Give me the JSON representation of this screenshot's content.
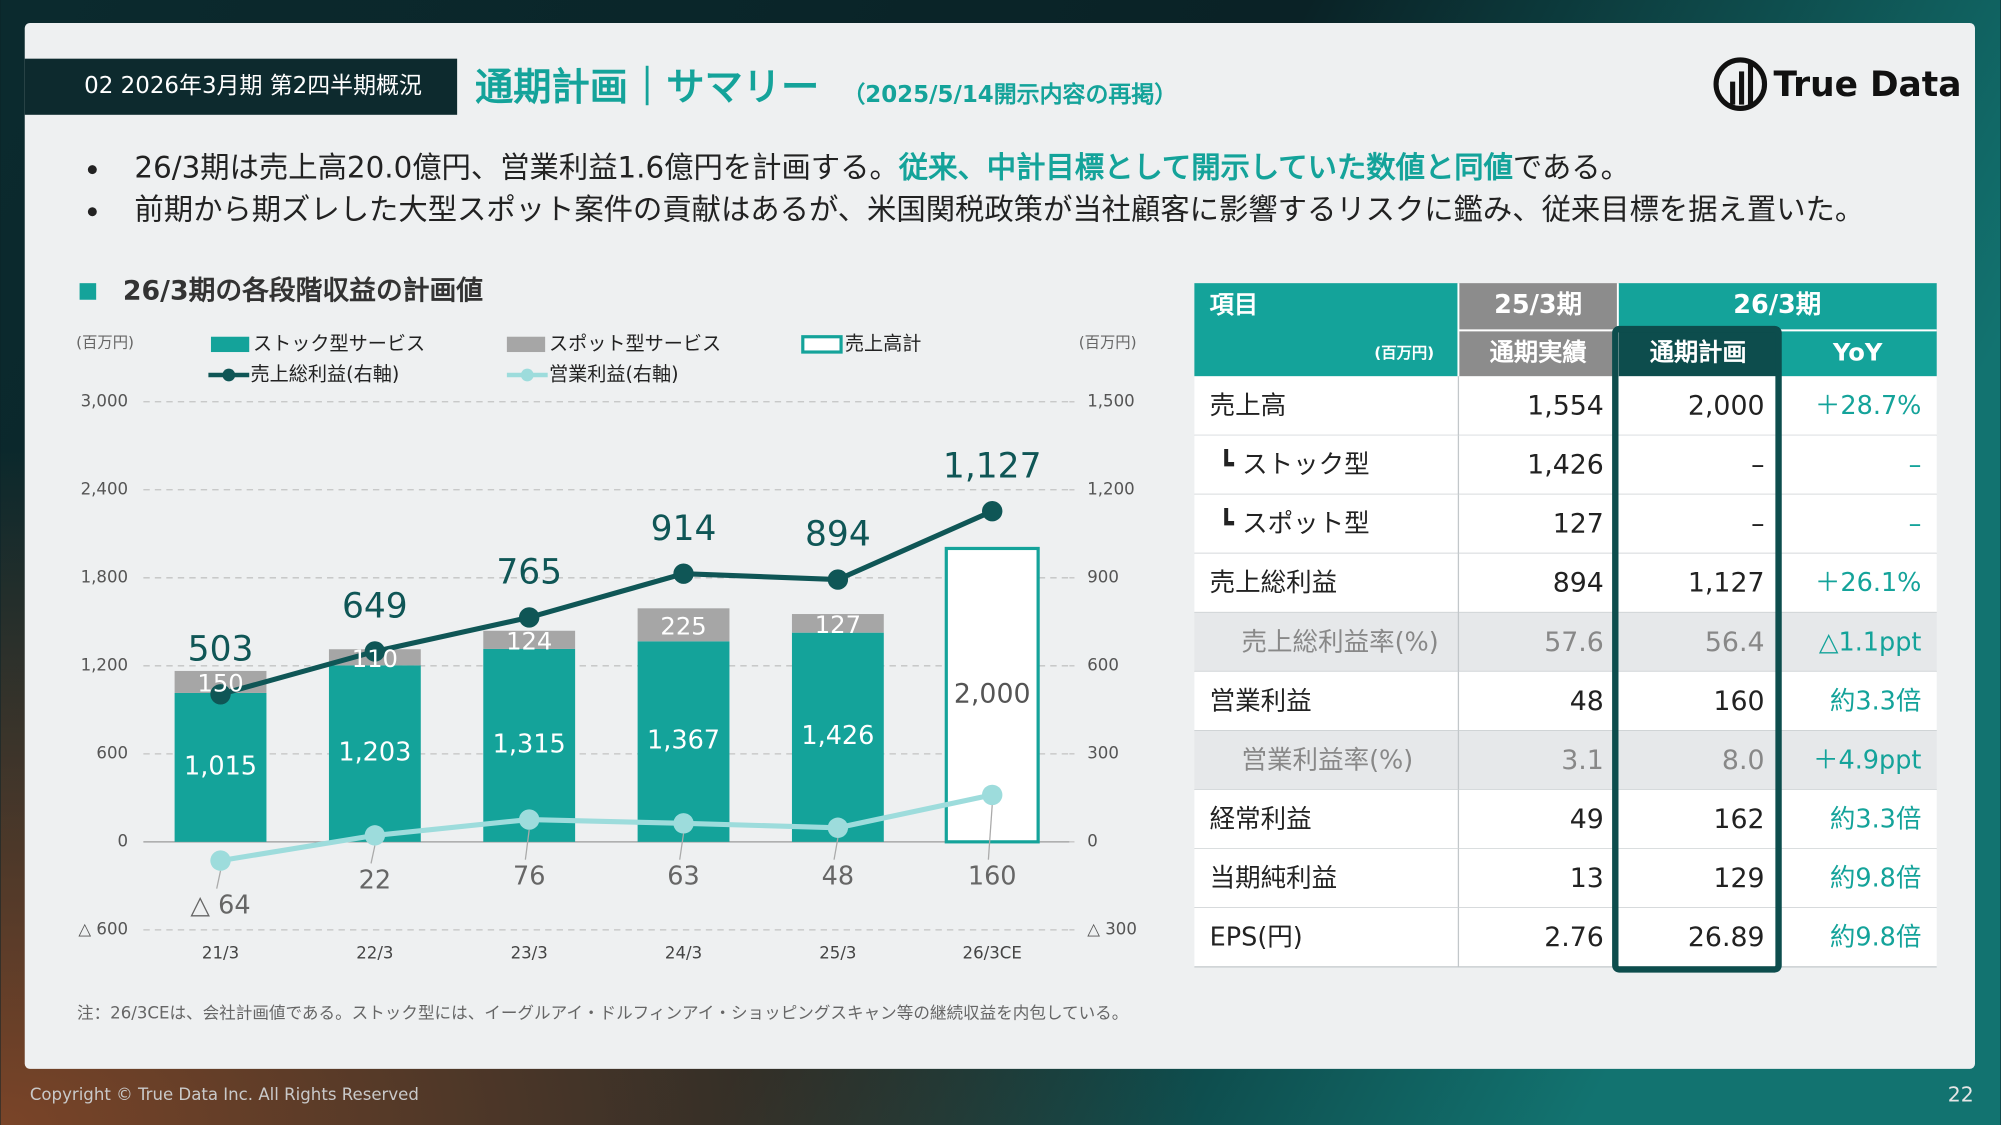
{
  "header": {
    "section": "02 2026年3月期 第2四半期概況",
    "title": "通期計画｜サマリー",
    "subtitle": "（2025/5/14開示内容の再掲）",
    "logo": "True Data"
  },
  "bullets": [
    {
      "before": "26/3期は売上高20.0億円、営業利益1.6億円を計画する。",
      "highlight": "従来、中計目標として開示していた数値と同値",
      "after": "である。"
    },
    {
      "before": "前期から期ズレした大型スポット案件の貢献はあるが、米国関税政策が当社顧客に影響するリスクに鑑み、従来目標を据え置いた。"
    }
  ],
  "chart_data": {
    "type": "bar",
    "title": "26/3期の各段階収益の計画値",
    "y_unit": "(百万円)",
    "y2_unit": "(百万円)",
    "categories": [
      "21/3",
      "22/3",
      "23/3",
      "24/3",
      "25/3",
      "26/3CE"
    ],
    "series": [
      {
        "name": "ストック型サービス",
        "type": "bar",
        "color": "#14a39a",
        "values": [
          1015,
          1203,
          1315,
          1367,
          1426,
          null
        ],
        "value_labels": [
          "1,015",
          "1,203",
          "1,315",
          "1,367",
          "1,426",
          null
        ]
      },
      {
        "name": "スポット型サービス",
        "type": "bar",
        "color": "#a6a6a6",
        "values": [
          150,
          110,
          124,
          225,
          127,
          null
        ]
      },
      {
        "name": "売上高計",
        "type": "bar",
        "style": "outline",
        "color": "#14a39a",
        "values": [
          null,
          null,
          null,
          null,
          null,
          2000
        ],
        "value_labels": [
          null,
          null,
          null,
          null,
          null,
          "2,000"
        ]
      },
      {
        "name": "売上総利益(右軸)",
        "type": "line",
        "axis": "y2",
        "color": "#0f5656",
        "values": [
          503,
          649,
          765,
          914,
          894,
          1127
        ],
        "value_labels": [
          "503",
          "649",
          "765",
          "914",
          "894",
          "1,127"
        ]
      },
      {
        "name": "営業利益(右軸)",
        "type": "line",
        "axis": "y2",
        "color": "#9ddcdc",
        "values": [
          -64,
          22,
          76,
          63,
          48,
          160
        ],
        "value_labels": [
          "△ 64",
          "22",
          "76",
          "63",
          "48",
          "160"
        ]
      }
    ],
    "ylim": [
      -600,
      3000
    ],
    "yticks": [
      {
        "value": -600,
        "label": "△ 600"
      },
      0,
      600,
      {
        "value": 1200,
        "label": "1,200"
      },
      {
        "value": 1800,
        "label": "1,800"
      },
      {
        "value": 2400,
        "label": "2,400"
      },
      {
        "value": 3000,
        "label": "3,000"
      }
    ],
    "y2lim": [
      -300,
      1500
    ],
    "y2ticks": [
      {
        "value": -300,
        "label": "△ 300"
      },
      0,
      300,
      600,
      900,
      {
        "value": 1200,
        "label": "1,200"
      },
      {
        "value": 1500,
        "label": "1,500"
      }
    ],
    "grid": true
  },
  "table": {
    "header": [
      [
        "項目",
        "25/3期",
        "26/3期"
      ],
      [
        "(百万円)",
        "通期実績",
        "通期計画",
        "YoY"
      ]
    ],
    "rows": [
      [
        "売上高",
        "1,554",
        "2,000",
        "＋28.7%"
      ],
      [
        "┗ ストック型",
        "1,426",
        "–",
        "–"
      ],
      [
        "┗ スポット型",
        "127",
        "–",
        "–"
      ],
      [
        "売上総利益",
        "894",
        "1,127",
        "＋26.1%"
      ],
      [
        "売上総利益率(%)",
        "57.6",
        "56.4",
        "△1.1ppt"
      ],
      [
        "営業利益",
        "48",
        "160",
        "約3.3倍"
      ],
      [
        "営業利益率(%)",
        "3.1",
        "8.0",
        "＋4.9ppt"
      ],
      [
        "経常利益",
        "49",
        "162",
        "約3.3倍"
      ],
      [
        "当期純利益",
        "13",
        "129",
        "約9.8倍"
      ],
      [
        "EPS(円)",
        "2.76",
        "26.89",
        "約9.8倍"
      ]
    ]
  },
  "note": "注：26/3CEは、会社計画値である。ストック型には、イーグルアイ・ドルフィンアイ・ショッピングスキャン等の継続収益を内包している。",
  "footer": {
    "copyright": "Copyright © True Data Inc. All Rights Reserved",
    "page": "22"
  }
}
